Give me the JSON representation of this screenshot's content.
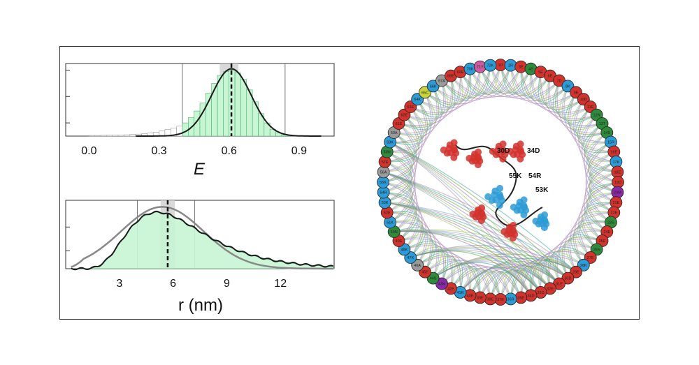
{
  "colors": {
    "hist_fill": "#c8f5d4",
    "hist_edge": "#2fa65a",
    "fit_curve": "#1a1a1a",
    "model_curve": "#888888",
    "band": "#cfcfcf",
    "link_colors": [
      "#3ba7a0",
      "#6a9e3b",
      "#9b7bb8",
      "#a3c25a",
      "#7fa6c9",
      "#b48ab0"
    ],
    "node_red": "#d2332d",
    "node_green": "#2f8a3c",
    "node_blue": "#2d9bd6",
    "node_gray": "#9a9a9a",
    "node_purple": "#8a2aa8",
    "node_pink": "#d05aa0",
    "node_yellow": "#c9d43a"
  },
  "chart_data": [
    {
      "type": "bar",
      "xlabel": "E",
      "x_ticks": [
        "0.0",
        "0.3",
        "0.6",
        "0.9"
      ],
      "xlim": [
        -0.1,
        1.05
      ],
      "grid_x": [
        0.4,
        0.84
      ],
      "band": [
        0.56,
        0.64
      ],
      "dashed_line": 0.61,
      "bins": [
        0.0,
        0.025,
        0.05,
        0.075,
        0.1,
        0.125,
        0.15,
        0.175,
        0.2,
        0.225,
        0.25,
        0.275,
        0.3,
        0.325,
        0.35,
        0.375,
        0.4,
        0.425,
        0.45,
        0.475,
        0.5,
        0.525,
        0.55,
        0.575,
        0.6,
        0.625,
        0.65,
        0.675,
        0.7,
        0.725,
        0.75,
        0.775,
        0.8,
        0.825,
        0.85
      ],
      "values": [
        0.01,
        0.01,
        0.012,
        0.014,
        0.016,
        0.018,
        0.02,
        0.024,
        0.03,
        0.036,
        0.045,
        0.06,
        0.08,
        0.1,
        0.12,
        0.15,
        0.2,
        0.28,
        0.38,
        0.5,
        0.65,
        0.8,
        0.92,
        0.98,
        1.0,
        0.96,
        0.86,
        0.7,
        0.52,
        0.34,
        0.2,
        0.1,
        0.05,
        0.02,
        0.01
      ],
      "fit": {
        "mean": 0.61,
        "sd": 0.085
      },
      "ylim": [
        0,
        1.1
      ]
    },
    {
      "type": "bar",
      "xlabel": "r (nm)",
      "x_ticks": [
        "3",
        "6",
        "9",
        "12"
      ],
      "xlim": [
        0,
        15
      ],
      "grid_x": [
        4,
        7.2
      ],
      "band": [
        5.3,
        6.1
      ],
      "dashed_line": 5.7,
      "fit": {
        "shape": "lognormal",
        "peak": 5.2
      },
      "model": {
        "shape": "gaussian_chain",
        "peak": 5.4
      },
      "ylim": [
        0,
        1.15
      ]
    },
    {
      "type": "network",
      "node_labels": [
        "1D",
        "2R",
        "3E",
        "4S",
        "5E",
        "6E",
        "7D",
        "8K",
        "9E",
        "10D",
        "11E",
        "12N",
        "13T",
        "14S",
        "15R",
        "16E",
        "17K",
        "18E",
        "19D",
        "20M",
        "21E",
        "22E",
        "23S",
        "24E",
        "25E",
        "26S",
        "27E",
        "28K",
        "29E",
        "30D",
        "31E",
        "32E",
        "33D",
        "34D",
        "35E",
        "36R",
        "37E",
        "38E",
        "39E",
        "40E",
        "41R",
        "42E",
        "43M",
        "44S",
        "45E",
        "46A",
        "47K",
        "48K",
        "49E",
        "50N",
        "51K",
        "52E",
        "53K",
        "54R",
        "55K",
        "56A",
        "57E",
        "58N",
        "59K",
        "60A",
        "61E",
        "62E",
        "63E",
        "64K",
        "65C",
        "66K",
        "67A",
        "68E",
        "69E",
        "70K",
        "71Y",
        "72K"
      ],
      "structure_labels": [
        "30D",
        "34D",
        "55K",
        "54R",
        "53K"
      ]
    }
  ]
}
